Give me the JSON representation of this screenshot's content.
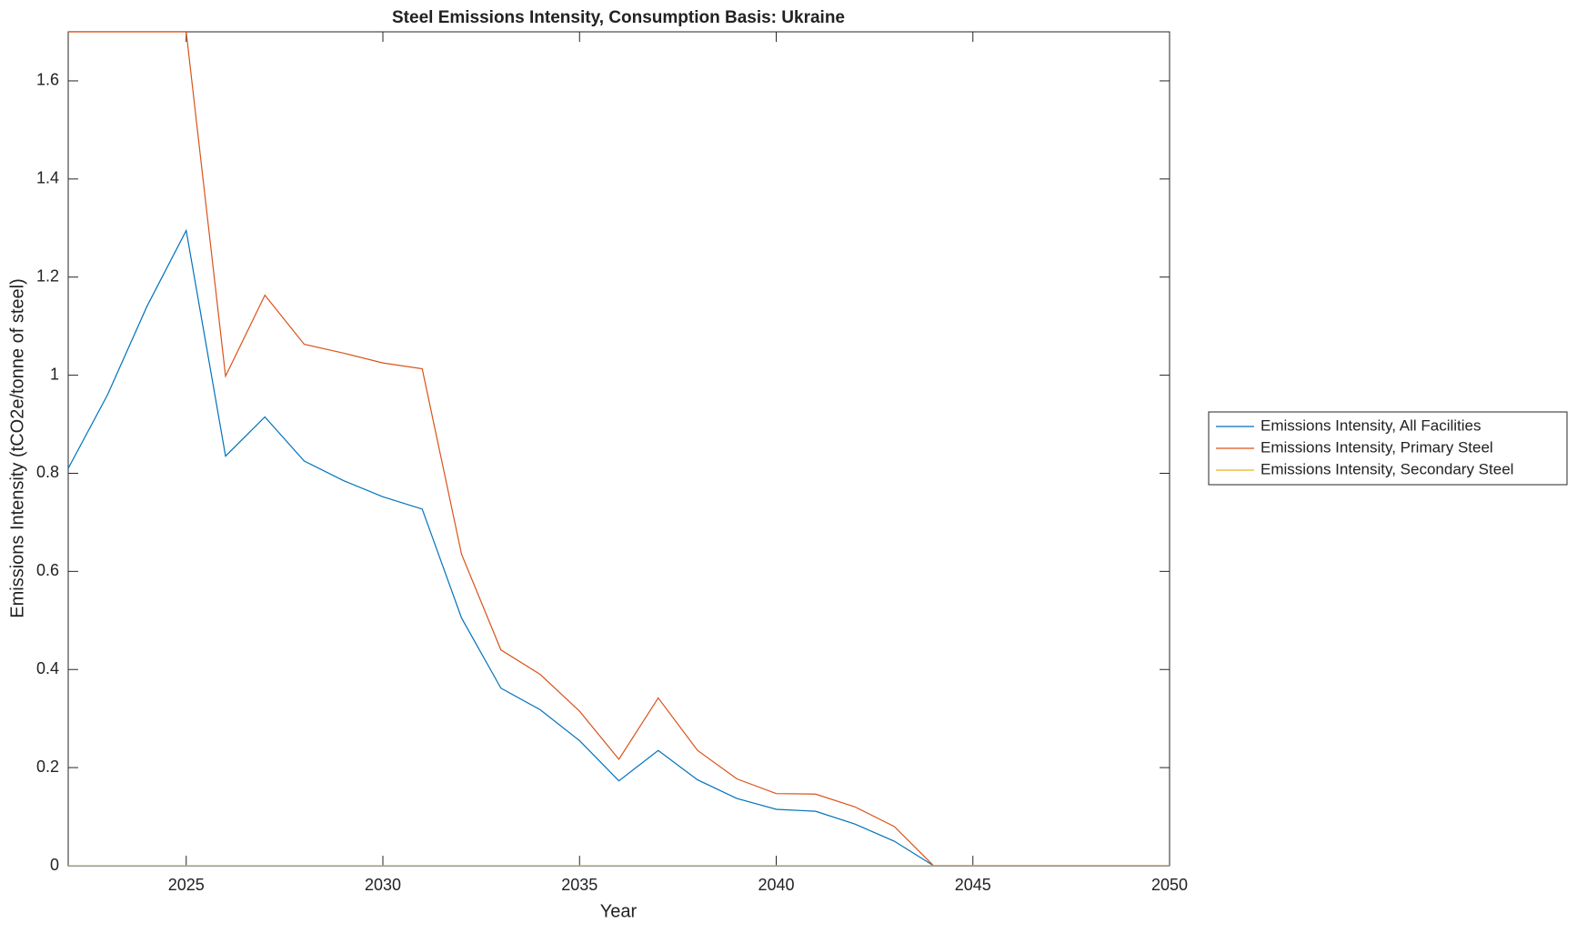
{
  "chart_data": {
    "type": "line",
    "title": "Steel Emissions Intensity, Consumption Basis: Ukraine",
    "x_label": "Year",
    "y_label": "Emissions Intensity (tCO2e/tonne of steel)",
    "x": [
      2022,
      2023,
      2024,
      2025,
      2026,
      2027,
      2028,
      2029,
      2030,
      2031,
      2032,
      2033,
      2034,
      2035,
      2036,
      2037,
      2038,
      2039,
      2040,
      2041,
      2042,
      2043,
      2044,
      2045,
      2046,
      2047,
      2048,
      2049,
      2050
    ],
    "series": [
      {
        "name": "Emissions Intensity, All Facilities",
        "color": "#0072bd",
        "values": [
          0.81,
          0.96,
          1.14,
          1.295,
          0.835,
          0.915,
          0.825,
          0.785,
          0.752,
          0.727,
          0.505,
          0.362,
          0.318,
          0.255,
          0.173,
          0.235,
          0.175,
          0.137,
          0.115,
          0.111,
          0.085,
          0.05,
          0,
          0,
          0,
          0,
          0,
          0,
          0
        ]
      },
      {
        "name": "Emissions Intensity, Primary Steel",
        "color": "#d95319",
        "values": [
          1.7,
          1.7,
          1.7,
          1.7,
          0.998,
          1.163,
          1.063,
          1.045,
          1.025,
          1.013,
          0.635,
          0.44,
          0.39,
          0.315,
          0.217,
          0.342,
          0.235,
          0.177,
          0.147,
          0.146,
          0.12,
          0.08,
          0,
          0,
          0,
          0,
          0,
          0,
          0
        ]
      },
      {
        "name": "Emissions Intensity, Secondary Steel",
        "color": "#edb120",
        "values": [
          0,
          0,
          0,
          0,
          0,
          0,
          0,
          0,
          0,
          0,
          0,
          0,
          0,
          0,
          0,
          0,
          0,
          0,
          0,
          0,
          0,
          0,
          0,
          0,
          0,
          0,
          0,
          0,
          0
        ]
      }
    ],
    "xlim": [
      2022,
      2050
    ],
    "xticks": [
      2025,
      2030,
      2035,
      2040,
      2045,
      2050
    ],
    "ylim": [
      0,
      1.7
    ],
    "yticks": [
      0,
      0.2,
      0.4,
      0.6,
      0.8,
      1,
      1.2,
      1.4,
      1.6
    ],
    "legend": "outside-right"
  }
}
